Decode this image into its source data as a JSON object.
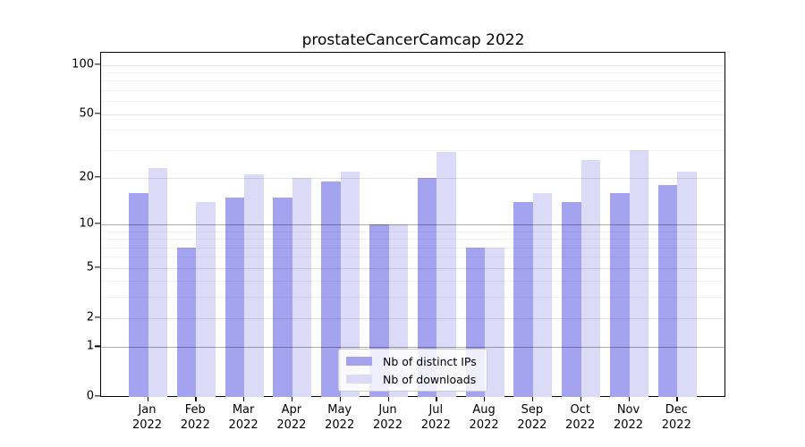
{
  "title": "prostateCancerCamcap 2022",
  "legend": {
    "items": [
      {
        "label": "Nb of distinct IPs",
        "color": "#a3a3f0"
      },
      {
        "label": "Nb of downloads",
        "color": "#dbdbf8"
      }
    ]
  },
  "chart_data": {
    "type": "bar",
    "title": "prostateCancerCamcap 2022",
    "categories": [
      "Jan 2022",
      "Feb 2022",
      "Mar 2022",
      "Apr 2022",
      "May 2022",
      "Jun 2022",
      "Jul 2022",
      "Aug 2022",
      "Sep 2022",
      "Oct 2022",
      "Nov 2022",
      "Dec 2022"
    ],
    "series": [
      {
        "name": "Nb of distinct IPs",
        "color": "#a3a3f0",
        "values": [
          16,
          7,
          15,
          15,
          19,
          10,
          20,
          7,
          14,
          14,
          16,
          18
        ]
      },
      {
        "name": "Nb of downloads",
        "color": "#dbdbf8",
        "values": [
          23,
          14,
          21,
          20,
          22,
          10,
          29,
          7,
          16,
          26,
          30,
          22
        ]
      }
    ],
    "xlabel": "",
    "ylabel": "",
    "yscale": "log1p",
    "ylim": [
      0,
      117
    ],
    "yticks": [
      0,
      1,
      2,
      5,
      10,
      20,
      50,
      100
    ],
    "grid": "horizontal",
    "grid_major": [
      1,
      10
    ],
    "grid_medium": [
      2,
      5,
      20,
      50,
      100
    ],
    "grid_minor": [
      3,
      4,
      6,
      7,
      8,
      9,
      30,
      40,
      60,
      70,
      80,
      90
    ],
    "legend_position": "inside-bottom-center"
  }
}
